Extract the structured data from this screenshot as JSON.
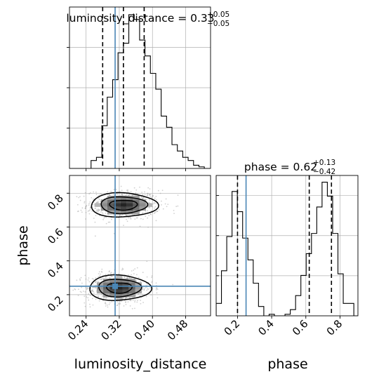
{
  "colors": {
    "truth": "#4a86b5",
    "hist": "#000000",
    "grid": "#b0b0b0",
    "points": "#9a9a9a"
  },
  "chart_data": [
    {
      "type": "histogram",
      "panel": "top-left",
      "title_param": "luminosity_distance",
      "title_value": "0.33",
      "title_plus": "+0.05",
      "title_minus": "−0.05",
      "xlim": [
        0.2,
        0.54
      ],
      "x_ticks": [
        0.24,
        0.32,
        0.4,
        0.48
      ],
      "y_tick_count": 4,
      "bin_edges": [
        0.2,
        0.213,
        0.226,
        0.239,
        0.252,
        0.265,
        0.278,
        0.291,
        0.304,
        0.317,
        0.33,
        0.343,
        0.356,
        0.369,
        0.382,
        0.395,
        0.408,
        0.421,
        0.434,
        0.447,
        0.46,
        0.473,
        0.486,
        0.499,
        0.512,
        0.525,
        0.54
      ],
      "counts": [
        0.0,
        0.0,
        0.0,
        0.0,
        0.05,
        0.07,
        0.27,
        0.45,
        0.56,
        0.73,
        0.79,
        0.97,
        0.94,
        0.81,
        0.71,
        0.6,
        0.5,
        0.33,
        0.26,
        0.15,
        0.11,
        0.07,
        0.05,
        0.02,
        0.01,
        0.0
      ],
      "quantiles": [
        0.28,
        0.33,
        0.38
      ],
      "truth": 0.31
    },
    {
      "type": "scatter-contour",
      "panel": "bottom-left",
      "xlabel": "luminosity_distance",
      "ylabel": "phase",
      "xlim": [
        0.2,
        0.54
      ],
      "ylim": [
        0.075,
        0.905
      ],
      "x_ticks": [
        0.24,
        0.32,
        0.4,
        0.48
      ],
      "y_ticks": [
        0.2,
        0.4,
        0.6,
        0.8
      ],
      "clusters": [
        {
          "center": [
            0.33,
            0.73
          ],
          "sigma": [
            0.038,
            0.038
          ]
        },
        {
          "center": [
            0.32,
            0.24
          ],
          "sigma": [
            0.035,
            0.04
          ]
        }
      ],
      "truth": [
        0.31,
        0.25
      ]
    },
    {
      "type": "histogram",
      "panel": "bottom-right",
      "title_param": "phase",
      "title_value": "0.62",
      "title_plus": "+0.13",
      "title_minus": "−0.42",
      "xlabel": "phase",
      "xlim": [
        0.075,
        0.905
      ],
      "x_ticks": [
        0.2,
        0.4,
        0.6,
        0.8
      ],
      "y_tick_count": 3,
      "bin_edges": [
        0.075,
        0.106,
        0.137,
        0.168,
        0.199,
        0.23,
        0.261,
        0.292,
        0.323,
        0.354,
        0.385,
        0.416,
        0.447,
        0.478,
        0.509,
        0.54,
        0.571,
        0.602,
        0.633,
        0.664,
        0.695,
        0.726,
        0.757,
        0.788,
        0.819,
        0.85,
        0.881,
        0.905
      ],
      "counts": [
        0.08,
        0.29,
        0.51,
        0.8,
        0.67,
        0.5,
        0.36,
        0.21,
        0.06,
        0.0,
        0.01,
        0.0,
        0.0,
        0.01,
        0.04,
        0.13,
        0.26,
        0.4,
        0.53,
        0.7,
        0.86,
        0.77,
        0.53,
        0.27,
        0.08,
        0.08,
        0.0
      ],
      "quantiles": [
        0.2,
        0.62,
        0.75
      ],
      "truth": 0.25
    }
  ]
}
